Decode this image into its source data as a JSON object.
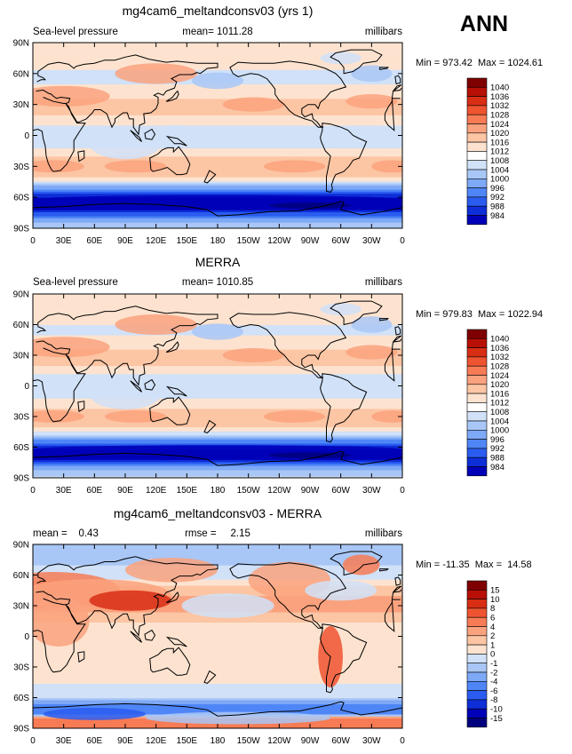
{
  "season": "ANN",
  "colors": {
    "abs_scale": [
      "#00007e",
      "#0000b8",
      "#0e2ed8",
      "#2a5cf0",
      "#4f86f7",
      "#7ea9f6",
      "#a9c7f6",
      "#d0e1f8",
      "#ffffff",
      "#fde3cf",
      "#fcc5a4",
      "#faa27e",
      "#f77b55",
      "#ee5430",
      "#d82e14",
      "#b81006",
      "#7e0000"
    ],
    "diff_scale": [
      "#00007e",
      "#0000b8",
      "#0e2ed8",
      "#2a5cf0",
      "#4f86f7",
      "#7ea9f6",
      "#a9c7f6",
      "#d0e1f8",
      "#fde3cf",
      "#fcc5a4",
      "#faa27e",
      "#f77b55",
      "#ee5430",
      "#d82e14",
      "#b81006",
      "#7e0000"
    ]
  },
  "chart_data": [
    {
      "type": "heatmap",
      "title": "mg4cam6_meltandconsv03 (yrs 1)",
      "left_label": "Sea-level pressure",
      "mean_text": "mean= 1011.28",
      "units": "millibars",
      "min_max_text": "Min = 973.42  Max = 1024.61",
      "x_ticks": [
        "0",
        "30E",
        "60E",
        "90E",
        "120E",
        "150E",
        "180",
        "150W",
        "120W",
        "90W",
        "60W",
        "30W",
        "0"
      ],
      "y_ticks": [
        "90N",
        "60N",
        "30N",
        "0",
        "30S",
        "60S",
        "90S"
      ],
      "lon_range": [
        0,
        360
      ],
      "lat_range": [
        -90,
        90
      ],
      "levels": [
        "1040",
        "1036",
        "1032",
        "1028",
        "1024",
        "1020",
        "1016",
        "1012",
        "1008",
        "1004",
        "1000",
        "996",
        "992",
        "988",
        "984"
      ],
      "zonal_profile": {
        "lat": [
          -90,
          -80,
          -70,
          -65,
          -60,
          -55,
          -50,
          -45,
          -40,
          -35,
          -30,
          -25,
          -20,
          -15,
          -10,
          -5,
          0,
          5,
          10,
          15,
          20,
          25,
          30,
          35,
          40,
          45,
          50,
          55,
          60,
          65,
          70,
          75,
          80,
          90
        ],
        "value": [
          1008,
          1000,
          984,
          984,
          988,
          994,
          1002,
          1010,
          1016,
          1019,
          1020,
          1018,
          1016,
          1013,
          1011,
          1010,
          1010,
          1010,
          1012,
          1014,
          1016,
          1018,
          1018,
          1016,
          1014,
          1013,
          1012,
          1011,
          1011,
          1012,
          1013,
          1014,
          1014,
          1014
        ]
      }
    },
    {
      "type": "heatmap",
      "title": "MERRA",
      "left_label": "Sea-level pressure",
      "mean_text": "mean= 1010.85",
      "units": "millibars",
      "min_max_text": "Min = 979.83  Max = 1022.94",
      "x_ticks": [
        "0",
        "30E",
        "60E",
        "90E",
        "120E",
        "150E",
        "180",
        "150W",
        "120W",
        "90W",
        "60W",
        "30W",
        "0"
      ],
      "y_ticks": [
        "90N",
        "60N",
        "30N",
        "0",
        "30S",
        "60S",
        "90S"
      ],
      "lon_range": [
        0,
        360
      ],
      "lat_range": [
        -90,
        90
      ],
      "levels": [
        "1040",
        "1036",
        "1032",
        "1028",
        "1024",
        "1020",
        "1016",
        "1012",
        "1008",
        "1004",
        "1000",
        "996",
        "992",
        "988",
        "984"
      ],
      "zonal_profile": {
        "lat": [
          -90,
          -80,
          -70,
          -65,
          -60,
          -55,
          -50,
          -45,
          -40,
          -35,
          -30,
          -25,
          -20,
          -15,
          -10,
          -5,
          0,
          5,
          10,
          15,
          20,
          25,
          30,
          35,
          40,
          45,
          50,
          55,
          60,
          65,
          70,
          75,
          80,
          90
        ],
        "value": [
          1010,
          1002,
          986,
          986,
          990,
          996,
          1004,
          1011,
          1016,
          1019,
          1019,
          1017,
          1015,
          1013,
          1011,
          1010,
          1010,
          1010,
          1011,
          1014,
          1016,
          1017,
          1017,
          1016,
          1014,
          1013,
          1012,
          1011,
          1012,
          1013,
          1014,
          1015,
          1015,
          1015
        ]
      }
    },
    {
      "type": "heatmap",
      "title": "mg4cam6_meltandconsv03 - MERRA",
      "mean_text": "mean =    0.43",
      "rmse_text": "rmse =     2.15",
      "units": "millibars",
      "min_max_text": "Min = -11.35  Max =  14.58",
      "x_ticks": [
        "0",
        "30E",
        "60E",
        "90E",
        "120E",
        "150E",
        "180",
        "150W",
        "120W",
        "90W",
        "60W",
        "30W",
        "0"
      ],
      "y_ticks": [
        "90N",
        "60N",
        "30N",
        "0",
        "30S",
        "60S",
        "90S"
      ],
      "lon_range": [
        0,
        360
      ],
      "lat_range": [
        -90,
        90
      ],
      "levels": [
        "15",
        "10",
        "8",
        "6",
        "4",
        "2",
        "1",
        "0",
        "-1",
        "-2",
        "-4",
        "-6",
        "-8",
        "-10",
        "-15"
      ],
      "zonal_profile": {
        "lat": [
          -90,
          -80,
          -75,
          -70,
          -65,
          -60,
          -50,
          -40,
          -30,
          -20,
          -10,
          0,
          10,
          20,
          30,
          40,
          50,
          60,
          70,
          80,
          90
        ],
        "value": [
          6,
          4,
          -5,
          -6,
          -3,
          -1,
          -0.5,
          0.5,
          0.8,
          0.3,
          0.2,
          0.5,
          0.5,
          1.5,
          2.5,
          2,
          1,
          -0.5,
          -1,
          -1.5,
          -1
        ]
      }
    }
  ]
}
